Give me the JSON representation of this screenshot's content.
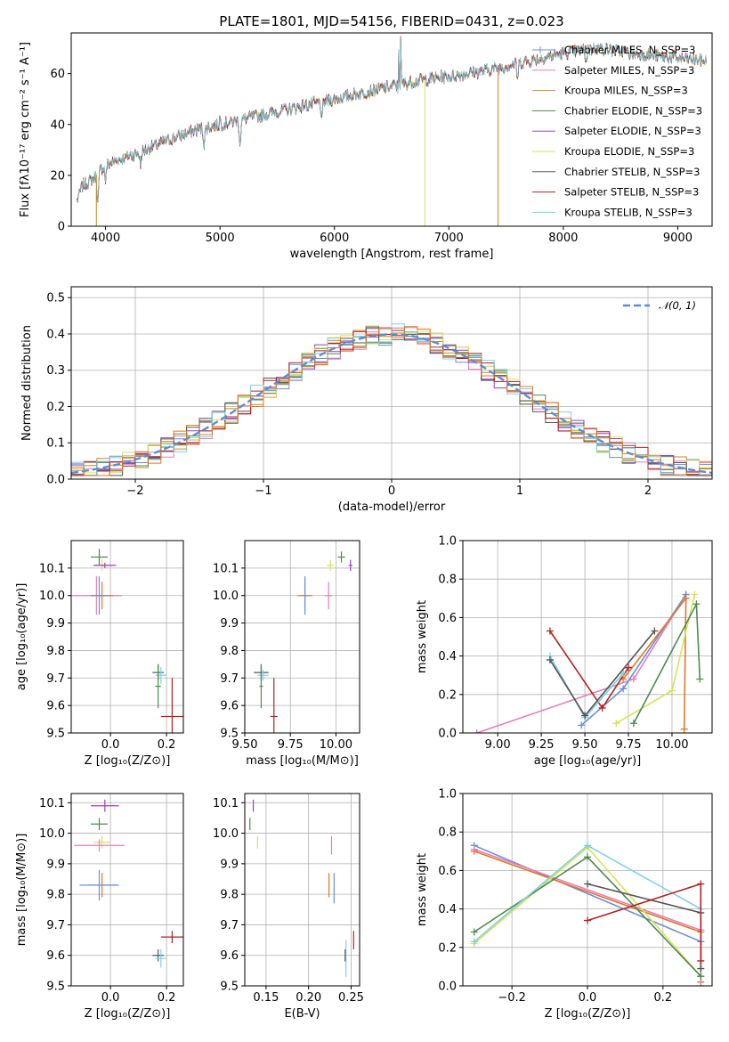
{
  "figure_title": "PLATE=1801, MJD=54156, FIBERID=0431, z=0.023",
  "chart_data": [
    {
      "id": "spectrum",
      "type": "line",
      "xlabel": "wavelength [Angstrom, rest frame]",
      "ylabel": "Flux [fλ10⁻¹⁷ erg cm⁻² s⁻¹ A⁻¹]",
      "xlim": [
        3700,
        9300
      ],
      "ylim": [
        0,
        76
      ],
      "xticks": [
        4000,
        5000,
        6000,
        7000,
        8000,
        9000
      ],
      "yticks": [
        0,
        20,
        40,
        60
      ],
      "grid": false,
      "legend_position": "top-right",
      "legend": [
        {
          "name": "Chabrier MILES, N_SSP=3",
          "color": "#6b8fd6",
          "marker": true
        },
        {
          "name": "Salpeter MILES, N_SSP=3",
          "color": "#e57fb9"
        },
        {
          "name": "Kroupa MILES, N_SSP=3",
          "color": "#c98a1c"
        },
        {
          "name": "Chabrier ELODIE, N_SSP=3",
          "color": "#4f8a4f"
        },
        {
          "name": "Salpeter ELODIE, N_SSP=3",
          "color": "#9b3fbf"
        },
        {
          "name": "Kroupa ELODIE, N_SSP=3",
          "color": "#d6e35a"
        },
        {
          "name": "Chabrier STELIB, N_SSP=3",
          "color": "#555555"
        },
        {
          "name": "Salpeter STELIB, N_SSP=3",
          "color": "#b22222"
        },
        {
          "name": "Kroupa STELIB, N_SSP=3",
          "color": "#7fd1e0"
        }
      ],
      "continuum": [
        [
          3750,
          10
        ],
        [
          3800,
          16
        ],
        [
          3900,
          19
        ],
        [
          3950,
          22
        ],
        [
          4000,
          24
        ],
        [
          4100,
          26
        ],
        [
          4300,
          29
        ],
        [
          4500,
          33
        ],
        [
          4800,
          38
        ],
        [
          5000,
          40
        ],
        [
          5200,
          42
        ],
        [
          5500,
          45
        ],
        [
          5800,
          48
        ],
        [
          6000,
          50
        ],
        [
          6300,
          53
        ],
        [
          6500,
          55
        ],
        [
          6700,
          57
        ],
        [
          7000,
          59
        ],
        [
          7300,
          61
        ],
        [
          7600,
          64
        ],
        [
          7800,
          66
        ],
        [
          8000,
          68
        ],
        [
          8300,
          70
        ],
        [
          8600,
          68
        ],
        [
          9000,
          66
        ],
        [
          9250,
          65
        ]
      ],
      "dips": [
        [
          3933,
          -12
        ],
        [
          4000,
          -6
        ],
        [
          4305,
          -5
        ],
        [
          4861,
          -6
        ],
        [
          5175,
          -9
        ],
        [
          5890,
          -8
        ],
        [
          6563,
          -6
        ],
        [
          7600,
          -6
        ],
        [
          8200,
          -5
        ]
      ],
      "spikes": [
        [
          6563,
          25
        ],
        [
          6580,
          18
        ],
        [
          5000,
          4
        ]
      ]
    },
    {
      "id": "residuals",
      "type": "histogram",
      "xlabel": "(data-model)/error",
      "ylabel": "Normed distribution",
      "xlim": [
        -2.5,
        2.5
      ],
      "ylim": [
        0,
        0.53
      ],
      "xticks": [
        -2,
        -1,
        0,
        1,
        2
      ],
      "yticks": [
        0.0,
        0.1,
        0.2,
        0.3,
        0.4,
        0.5
      ],
      "grid": true,
      "legend_position": "top-right",
      "legend": [
        {
          "name": "𝒩(0, 1)",
          "color": "#5b8ed6",
          "dashed": true
        }
      ],
      "bin_width": 0.1,
      "gaussian": {
        "mean": 0,
        "sigma": 1
      }
    },
    {
      "id": "age_vs_Z",
      "type": "scatter",
      "xlabel": "Z [log₁₀(Z/Z⊙)]",
      "ylabel": "age  [log₁₀(age/yr)]",
      "xlim": [
        -0.14,
        0.26
      ],
      "ylim": [
        9.5,
        10.2
      ],
      "xticks": [
        0.0,
        0.2
      ],
      "yticks": [
        9.5,
        9.6,
        9.7,
        9.8,
        9.9,
        10.0,
        10.1
      ],
      "points": [
        {
          "x": -0.05,
          "y": 10.0,
          "xerr": 0.09,
          "yerr": 0.07,
          "color": "#e57fb9"
        },
        {
          "x": -0.03,
          "y": 10.0,
          "xerr": 0.04,
          "yerr": 0.05,
          "color": "#e0782a"
        },
        {
          "x": -0.04,
          "y": 10.0,
          "xerr": 0.03,
          "yerr": 0.07,
          "color": "#6b8fd6"
        },
        {
          "x": -0.03,
          "y": 10.11,
          "xerr": 0.03,
          "yerr": 0.02,
          "color": "#d6e35a"
        },
        {
          "x": -0.02,
          "y": 10.11,
          "xerr": 0.04,
          "yerr": 0.01,
          "color": "#9b3fbf"
        },
        {
          "x": -0.04,
          "y": 10.14,
          "xerr": 0.03,
          "yerr": 0.03,
          "color": "#4f8a4f"
        },
        {
          "x": 0.17,
          "y": 9.72,
          "xerr": 0.02,
          "yerr": 0.03,
          "color": "#555555"
        },
        {
          "x": 0.18,
          "y": 9.71,
          "xerr": 0.02,
          "yerr": 0.03,
          "color": "#7fd1e0"
        },
        {
          "x": 0.17,
          "y": 9.67,
          "xerr": 0.01,
          "yerr": 0.08,
          "color": "#4f8a4f"
        },
        {
          "x": 0.22,
          "y": 9.56,
          "xerr": 0.04,
          "yerr": 0.14,
          "color": "#b22222"
        }
      ]
    },
    {
      "id": "age_vs_mass",
      "type": "scatter",
      "xlabel": "mass [log₁₀(M/M⊙)]",
      "ylabel": "",
      "xlim": [
        9.5,
        10.13
      ],
      "ylim": [
        9.5,
        10.2
      ],
      "xticks": [
        9.5,
        9.75,
        10.0
      ],
      "yticks": [
        9.5,
        9.6,
        9.7,
        9.8,
        9.9,
        10.0,
        10.1
      ],
      "points": [
        {
          "x": 9.59,
          "y": 9.72,
          "xerr": 0.04,
          "yerr": 0.03,
          "color": "#555555"
        },
        {
          "x": 9.6,
          "y": 9.71,
          "xerr": 0.03,
          "yerr": 0.02,
          "color": "#7fd1e0"
        },
        {
          "x": 9.59,
          "y": 9.67,
          "xerr": 0.01,
          "yerr": 0.08,
          "color": "#4f8a4f"
        },
        {
          "x": 9.66,
          "y": 9.56,
          "xerr": 0.02,
          "yerr": 0.14,
          "color": "#b22222"
        },
        {
          "x": 9.83,
          "y": 10.0,
          "xerr": 0.04,
          "yerr": 0.06,
          "color": "#e0782a"
        },
        {
          "x": 9.83,
          "y": 10.0,
          "xerr": 0.01,
          "yerr": 0.07,
          "color": "#6b8fd6"
        },
        {
          "x": 9.96,
          "y": 10.0,
          "xerr": 0.02,
          "yerr": 0.05,
          "color": "#e57fb9"
        },
        {
          "x": 9.97,
          "y": 10.11,
          "xerr": 0.02,
          "yerr": 0.02,
          "color": "#d6e35a"
        },
        {
          "x": 10.03,
          "y": 10.14,
          "xerr": 0.02,
          "yerr": 0.02,
          "color": "#4f8a4f"
        },
        {
          "x": 10.08,
          "y": 10.11,
          "xerr": 0.01,
          "yerr": 0.02,
          "color": "#9b3fbf"
        }
      ]
    },
    {
      "id": "mass_weight_vs_age",
      "type": "line",
      "xlabel": "age  [log₁₀(age/yr)]",
      "ylabel": "mass weight",
      "xlim": [
        8.8,
        10.23
      ],
      "ylim": [
        0,
        1.0
      ],
      "xticks": [
        9.0,
        9.25,
        9.5,
        9.75,
        10.0
      ],
      "yticks": [
        0.0,
        0.2,
        0.4,
        0.6,
        0.8,
        1.0
      ],
      "grid": true,
      "series": [
        {
          "color": "#e57fb9",
          "points": [
            [
              8.88,
              0.0
            ],
            [
              9.78,
              0.28
            ],
            [
              10.08,
              0.72
            ]
          ]
        },
        {
          "color": "#6b8fd6",
          "points": [
            [
              9.48,
              0.04
            ],
            [
              9.72,
              0.23
            ],
            [
              10.08,
              0.72
            ]
          ]
        },
        {
          "color": "#e0782a",
          "points": [
            [
              9.72,
              0.28
            ],
            [
              10.08,
              0.7
            ],
            [
              10.07,
              0.02
            ]
          ]
        },
        {
          "color": "#d6e35a",
          "points": [
            [
              9.68,
              0.05
            ],
            [
              10.0,
              0.22
            ],
            [
              10.13,
              0.72
            ]
          ]
        },
        {
          "color": "#4f8a4f",
          "points": [
            [
              9.78,
              0.05
            ],
            [
              10.14,
              0.67
            ],
            [
              10.16,
              0.28
            ]
          ]
        },
        {
          "color": "#b22222",
          "points": [
            [
              9.3,
              0.53
            ],
            [
              9.6,
              0.13
            ],
            [
              9.75,
              0.34
            ]
          ]
        },
        {
          "color": "#7fd1e0",
          "points": [
            [
              9.3,
              0.4
            ],
            [
              9.5,
              0.08
            ],
            [
              9.72,
              0.31
            ]
          ]
        },
        {
          "color": "#555555",
          "points": [
            [
              9.3,
              0.38
            ],
            [
              9.5,
              0.09
            ],
            [
              9.9,
              0.53
            ]
          ]
        }
      ]
    },
    {
      "id": "mass_vs_Z",
      "type": "scatter",
      "xlabel": "Z [log₁₀(Z/Z⊙)]",
      "ylabel": "mass [log₁₀(M/M⊙)]",
      "xlim": [
        -0.14,
        0.26
      ],
      "ylim": [
        9.5,
        10.13
      ],
      "xticks": [
        0.0,
        0.2
      ],
      "yticks": [
        9.5,
        9.6,
        9.7,
        9.8,
        9.9,
        10.0,
        10.1
      ],
      "points": [
        {
          "x": -0.02,
          "y": 10.09,
          "xerr": 0.05,
          "yerr": 0.02,
          "color": "#9b3fbf"
        },
        {
          "x": -0.04,
          "y": 10.03,
          "xerr": 0.03,
          "yerr": 0.02,
          "color": "#4f8a4f"
        },
        {
          "x": -0.03,
          "y": 9.97,
          "xerr": 0.03,
          "yerr": 0.02,
          "color": "#d6e35a"
        },
        {
          "x": -0.04,
          "y": 9.96,
          "xerr": 0.09,
          "yerr": 0.02,
          "color": "#e57fb9"
        },
        {
          "x": -0.03,
          "y": 9.83,
          "xerr": 0.05,
          "yerr": 0.04,
          "color": "#e0782a"
        },
        {
          "x": -0.04,
          "y": 9.83,
          "xerr": 0.07,
          "yerr": 0.05,
          "color": "#6b8fd6"
        },
        {
          "x": 0.17,
          "y": 9.6,
          "xerr": 0.02,
          "yerr": 0.02,
          "color": "#555555"
        },
        {
          "x": 0.18,
          "y": 9.59,
          "xerr": 0.02,
          "yerr": 0.03,
          "color": "#7fd1e0"
        },
        {
          "x": 0.22,
          "y": 9.66,
          "xerr": 0.04,
          "yerr": 0.02,
          "color": "#b22222"
        }
      ]
    },
    {
      "id": "mass_vs_ebv",
      "type": "scatter",
      "xlabel": "E(B-V)",
      "ylabel": "",
      "xlim": [
        0.125,
        0.26
      ],
      "ylim": [
        9.5,
        10.13
      ],
      "xticks": [
        0.15,
        0.2,
        0.25
      ],
      "yticks": [
        9.5,
        9.6,
        9.7,
        9.8,
        9.9,
        10.0,
        10.1
      ],
      "points": [
        {
          "x": 0.135,
          "y": 10.09,
          "yerr": 0.02,
          "color": "#9b3fbf"
        },
        {
          "x": 0.131,
          "y": 10.03,
          "yerr": 0.02,
          "color": "#4f8a4f"
        },
        {
          "x": 0.14,
          "y": 9.97,
          "yerr": 0.02,
          "color": "#d6e35a"
        },
        {
          "x": 0.227,
          "y": 9.96,
          "yerr": 0.03,
          "color": "#e57fb9"
        },
        {
          "x": 0.224,
          "y": 9.83,
          "yerr": 0.04,
          "color": "#e0782a"
        },
        {
          "x": 0.23,
          "y": 9.82,
          "yerr": 0.05,
          "color": "#6b8fd6"
        },
        {
          "x": 0.244,
          "y": 9.59,
          "yerr": 0.06,
          "color": "#7fd1e0"
        },
        {
          "x": 0.243,
          "y": 9.6,
          "yerr": 0.02,
          "color": "#555555"
        },
        {
          "x": 0.253,
          "y": 9.65,
          "yerr": 0.03,
          "color": "#b22222"
        }
      ]
    },
    {
      "id": "mass_weight_vs_Z",
      "type": "line",
      "xlabel": "Z [log₁₀(Z/Z⊙)]",
      "ylabel": "mass weight",
      "xlim": [
        -0.33,
        0.33
      ],
      "ylim": [
        0,
        1.0
      ],
      "xticks": [
        -0.2,
        0.0,
        0.2
      ],
      "yticks": [
        0.0,
        0.2,
        0.4,
        0.6,
        0.8,
        1.0
      ],
      "grid": true,
      "series": [
        {
          "color": "#6b8fd6",
          "points": [
            [
              -0.3,
              0.73
            ],
            [
              0.3,
              0.23
            ],
            [
              0.3,
              0.05
            ]
          ]
        },
        {
          "color": "#e0782a",
          "points": [
            [
              -0.3,
              0.7
            ],
            [
              0.3,
              0.28
            ],
            [
              0.3,
              0.02
            ]
          ]
        },
        {
          "color": "#e57fb9",
          "points": [
            [
              -0.3,
              0.71
            ],
            [
              0.3,
              0.29
            ],
            [
              0.3,
              0.0
            ]
          ]
        },
        {
          "color": "#d6e35a",
          "points": [
            [
              -0.3,
              0.22
            ],
            [
              0.0,
              0.72
            ],
            [
              0.3,
              0.05
            ]
          ]
        },
        {
          "color": "#4f8a4f",
          "points": [
            [
              -0.3,
              0.28
            ],
            [
              0.0,
              0.67
            ],
            [
              0.3,
              0.05
            ]
          ]
        },
        {
          "color": "#7fd1e0",
          "points": [
            [
              -0.3,
              0.23
            ],
            [
              0.0,
              0.73
            ],
            [
              0.3,
              0.4
            ]
          ]
        },
        {
          "color": "#555555",
          "points": [
            [
              0.0,
              0.53
            ],
            [
              0.3,
              0.38
            ],
            [
              0.3,
              0.09
            ]
          ]
        },
        {
          "color": "#b22222",
          "points": [
            [
              0.0,
              0.34
            ],
            [
              0.3,
              0.53
            ],
            [
              0.3,
              0.13
            ]
          ]
        }
      ]
    }
  ]
}
